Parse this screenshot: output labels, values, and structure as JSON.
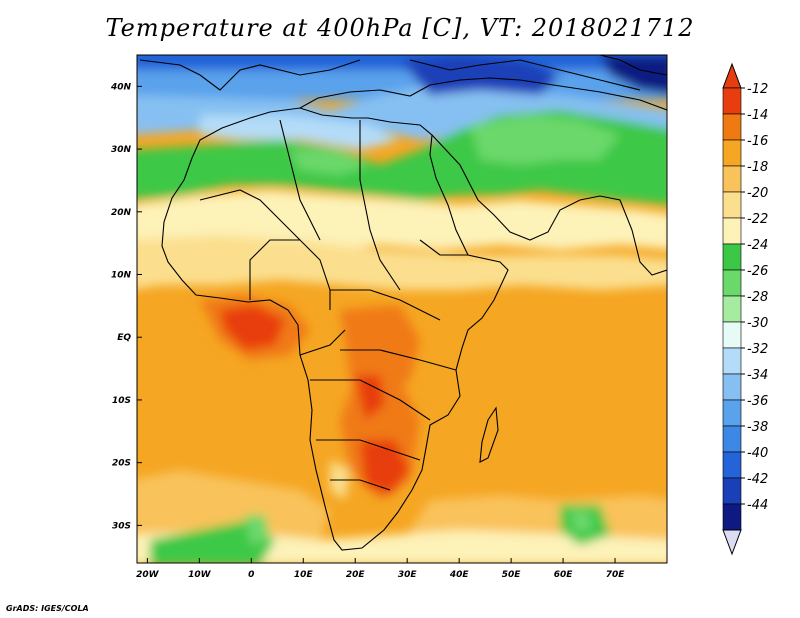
{
  "title": "Temperature at 400hPa [C], VT: 2018021712",
  "credit": "GrADS: IGES/COLA",
  "map": {
    "lon_ticks": [
      {
        "lon": -20,
        "label": "20W"
      },
      {
        "lon": -10,
        "label": "10W"
      },
      {
        "lon": 0,
        "label": "0"
      },
      {
        "lon": 10,
        "label": "10E"
      },
      {
        "lon": 20,
        "label": "20E"
      },
      {
        "lon": 30,
        "label": "30E"
      },
      {
        "lon": 40,
        "label": "40E"
      },
      {
        "lon": 50,
        "label": "50E"
      },
      {
        "lon": 60,
        "label": "60E"
      },
      {
        "lon": 70,
        "label": "70E"
      }
    ],
    "lat_ticks": [
      {
        "lat": 40,
        "label": "40N"
      },
      {
        "lat": 30,
        "label": "30N"
      },
      {
        "lat": 20,
        "label": "20N"
      },
      {
        "lat": 10,
        "label": "10N"
      },
      {
        "lat": 0,
        "label": "EQ"
      },
      {
        "lat": -10,
        "label": "10S"
      },
      {
        "lat": -20,
        "label": "20S"
      },
      {
        "lat": -30,
        "label": "30S"
      }
    ],
    "lon_range": [
      -22,
      80
    ],
    "lat_range": [
      -36,
      45
    ]
  },
  "colorbar": {
    "labels": [
      "-12",
      "-14",
      "-16",
      "-18",
      "-20",
      "-22",
      "-24",
      "-26",
      "-28",
      "-30",
      "-32",
      "-34",
      "-36",
      "-38",
      "-40",
      "-42",
      "-44"
    ],
    "colors": [
      "#e83e0f",
      "#f07a12",
      "#f5a623",
      "#f9c25a",
      "#fbdf8e",
      "#fdf2b8",
      "#3cc846",
      "#6ad86a",
      "#a6eca0",
      "#e6fbf6",
      "#b4dcf8",
      "#86c0f2",
      "#5aa2ec",
      "#3c88e4",
      "#2464d8",
      "#1a40b8",
      "#0e1a82"
    ],
    "top_color": "#e83e0f",
    "bottom_color": "#dcdcf4"
  }
}
